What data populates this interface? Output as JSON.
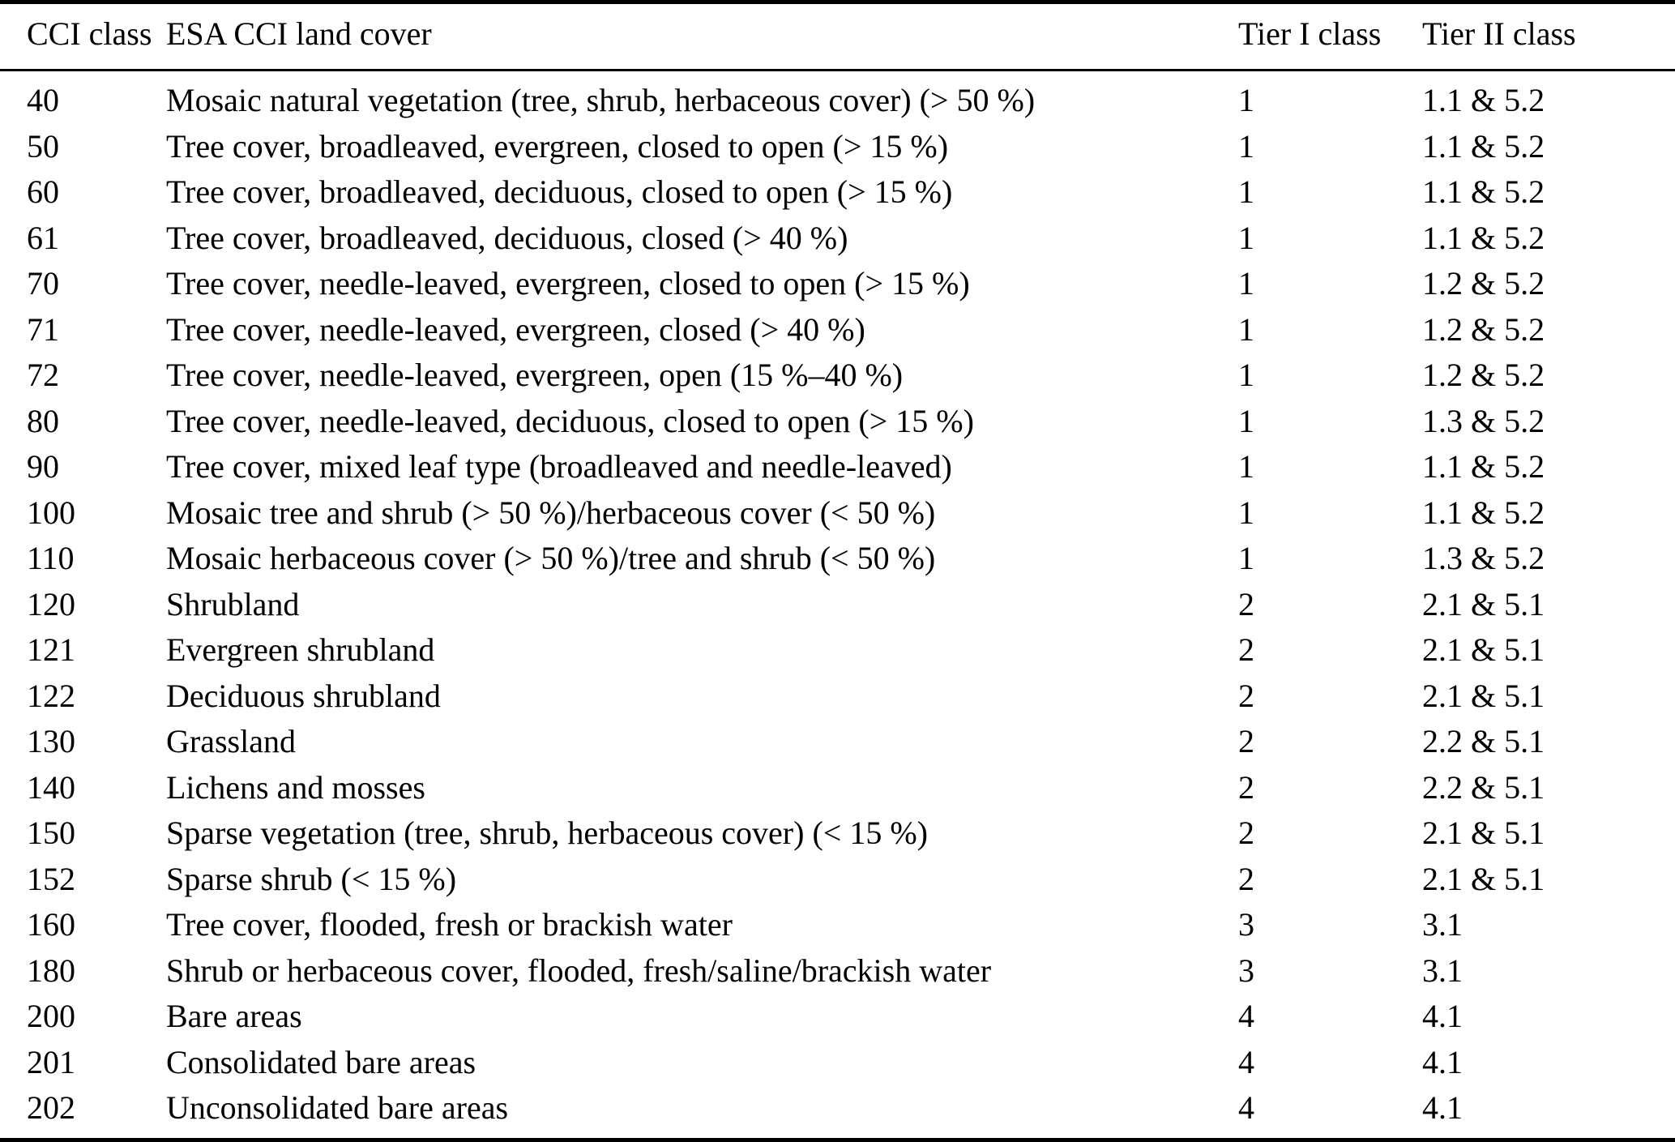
{
  "table": {
    "columns": [
      "CCI class",
      "ESA CCI land cover",
      "Tier I class",
      "Tier II class"
    ],
    "rows": [
      {
        "cci": "40",
        "cover": "Mosaic natural vegetation (tree, shrub, herbaceous cover) (> 50 %)",
        "tier1": "1",
        "tier2": "1.1 & 5.2"
      },
      {
        "cci": "50",
        "cover": "Tree cover, broadleaved, evergreen, closed to open (> 15 %)",
        "tier1": "1",
        "tier2": "1.1 & 5.2"
      },
      {
        "cci": "60",
        "cover": "Tree cover, broadleaved, deciduous, closed to open (> 15 %)",
        "tier1": "1",
        "tier2": "1.1 & 5.2"
      },
      {
        "cci": "61",
        "cover": "Tree cover, broadleaved, deciduous, closed (> 40 %)",
        "tier1": "1",
        "tier2": "1.1 & 5.2"
      },
      {
        "cci": "70",
        "cover": "Tree cover, needle-leaved, evergreen, closed to open (> 15 %)",
        "tier1": "1",
        "tier2": "1.2 & 5.2"
      },
      {
        "cci": "71",
        "cover": "Tree cover, needle-leaved, evergreen, closed (> 40 %)",
        "tier1": "1",
        "tier2": "1.2 & 5.2"
      },
      {
        "cci": "72",
        "cover": "Tree cover, needle-leaved, evergreen, open (15 %–40 %)",
        "tier1": "1",
        "tier2": "1.2 & 5.2"
      },
      {
        "cci": "80",
        "cover": "Tree cover, needle-leaved, deciduous, closed to open (> 15 %)",
        "tier1": "1",
        "tier2": "1.3 & 5.2"
      },
      {
        "cci": "90",
        "cover": "Tree cover, mixed leaf type (broadleaved and needle-leaved)",
        "tier1": "1",
        "tier2": "1.1 & 5.2"
      },
      {
        "cci": "100",
        "cover": "Mosaic tree and shrub (> 50 %)/herbaceous cover (< 50 %)",
        "tier1": "1",
        "tier2": "1.1 & 5.2"
      },
      {
        "cci": "110",
        "cover": "Mosaic herbaceous cover (> 50 %)/tree and shrub (< 50 %)",
        "tier1": "1",
        "tier2": "1.3 & 5.2"
      },
      {
        "cci": "120",
        "cover": "Shrubland",
        "tier1": "2",
        "tier2": "2.1 & 5.1"
      },
      {
        "cci": "121",
        "cover": "Evergreen shrubland",
        "tier1": "2",
        "tier2": "2.1 & 5.1"
      },
      {
        "cci": "122",
        "cover": "Deciduous shrubland",
        "tier1": "2",
        "tier2": "2.1 & 5.1"
      },
      {
        "cci": "130",
        "cover": "Grassland",
        "tier1": "2",
        "tier2": "2.2 & 5.1"
      },
      {
        "cci": "140",
        "cover": "Lichens and mosses",
        "tier1": "2",
        "tier2": "2.2 & 5.1"
      },
      {
        "cci": "150",
        "cover": "Sparse vegetation (tree, shrub, herbaceous cover) (< 15 %)",
        "tier1": "2",
        "tier2": "2.1 & 5.1"
      },
      {
        "cci": "152",
        "cover": "Sparse shrub (< 15 %)",
        "tier1": "2",
        "tier2": "2.1 & 5.1"
      },
      {
        "cci": "160",
        "cover": "Tree cover, flooded, fresh or brackish water",
        "tier1": "3",
        "tier2": "3.1"
      },
      {
        "cci": "180",
        "cover": "Shrub or herbaceous cover, flooded, fresh/saline/brackish water",
        "tier1": "3",
        "tier2": "3.1"
      },
      {
        "cci": "200",
        "cover": "Bare areas",
        "tier1": "4",
        "tier2": "4.1"
      },
      {
        "cci": "201",
        "cover": "Consolidated bare areas",
        "tier1": "4",
        "tier2": "4.1"
      },
      {
        "cci": "202",
        "cover": "Unconsolidated bare areas",
        "tier1": "4",
        "tier2": "4.1"
      }
    ]
  },
  "colors": {
    "text": "#000000",
    "background": "#ffffff",
    "rule": "#000000"
  }
}
